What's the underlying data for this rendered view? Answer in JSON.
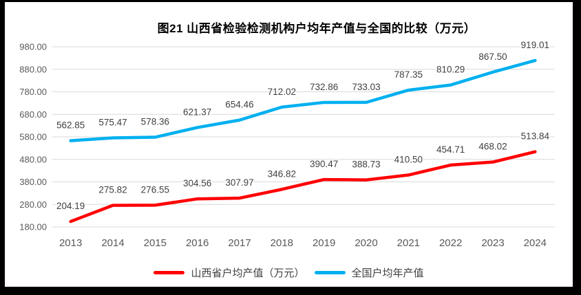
{
  "title": "图21 山西省检验检测机构户均年产值与全国的比较（万元）",
  "chart_data": {
    "type": "line",
    "title": "图21 山西省检验检测机构户均年产值与全国的比较（万元）",
    "categories": [
      "2013",
      "2014",
      "2015",
      "2016",
      "2017",
      "2018",
      "2019",
      "2020",
      "2021",
      "2022",
      "2023",
      "2024"
    ],
    "series": [
      {
        "name": "山西省户均产值（万元）",
        "color": "#FF0000",
        "values": [
          204.19,
          275.82,
          276.55,
          304.56,
          307.97,
          346.82,
          390.47,
          388.73,
          410.5,
          454.71,
          468.02,
          513.84
        ]
      },
      {
        "name": "全国户均年产值",
        "color": "#00B0F0",
        "values": [
          562.85,
          575.47,
          578.36,
          621.37,
          654.46,
          712.02,
          732.86,
          733.03,
          787.35,
          810.29,
          867.5,
          919.01
        ]
      }
    ],
    "ylim": [
      180,
      980
    ],
    "yticks": [
      "180.00",
      "280.00",
      "380.00",
      "480.00",
      "580.00",
      "680.00",
      "780.00",
      "880.00",
      "980.00"
    ],
    "grid": true,
    "data_labels": true,
    "legend_position": "bottom",
    "colors": {
      "gridline": "#D9D9D9",
      "tick_label": "#595959",
      "data_label": "#404040",
      "title": "#000000"
    }
  }
}
